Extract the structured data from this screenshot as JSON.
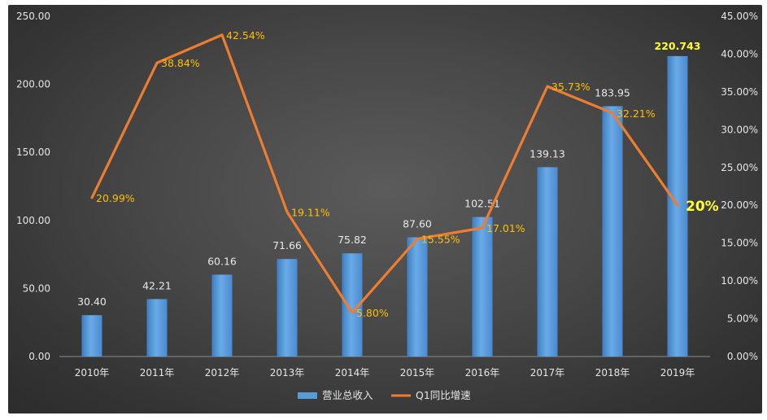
{
  "chart_data": {
    "type": "bar",
    "categories": [
      "2010年",
      "2011年",
      "2012年",
      "2013年",
      "2014年",
      "2015年",
      "2016年",
      "2017年",
      "2018年",
      "2019年"
    ],
    "series": [
      {
        "name": "营业总收入",
        "type": "bar",
        "axis": "left",
        "values": [
          30.4,
          42.21,
          60.16,
          71.66,
          75.82,
          87.6,
          102.51,
          139.13,
          183.95,
          220.743
        ],
        "labels": [
          "30.40",
          "42.21",
          "60.16",
          "71.66",
          "75.82",
          "87.60",
          "102.51",
          "139.13",
          "183.95",
          "220.743"
        ],
        "color": "#5b9bd5"
      },
      {
        "name": "Q1同比增速",
        "type": "line",
        "axis": "right",
        "values": [
          20.99,
          38.84,
          42.54,
          19.11,
          5.8,
          15.55,
          17.01,
          35.73,
          32.21,
          20.0
        ],
        "labels": [
          "20.99%",
          "38.84%",
          "42.54%",
          "19.11%",
          "5.80%",
          "15.55%",
          "17.01%",
          "35.73%",
          "32.21%",
          "20%"
        ],
        "color": "#ed7d31"
      }
    ],
    "y_left": {
      "ylim": [
        0,
        250
      ],
      "ticks": [
        "0.00",
        "50.00",
        "100.00",
        "150.00",
        "200.00",
        "250.00"
      ]
    },
    "y_right": {
      "ylim": [
        0,
        45
      ],
      "ticks": [
        "0.00%",
        "5.00%",
        "10.00%",
        "15.00%",
        "20.00%",
        "25.00%",
        "30.00%",
        "35.00%",
        "40.00%",
        "45.00%"
      ]
    },
    "highlight_index": 9,
    "grid": false,
    "legend_position": "bottom",
    "colors": {
      "background": "#3f3f3f",
      "bar": "#5b9bd5",
      "line": "#ed7d31",
      "pct_label": "#ffc000",
      "highlight_label": "#ffff33",
      "text": "#e6e6e6"
    }
  }
}
